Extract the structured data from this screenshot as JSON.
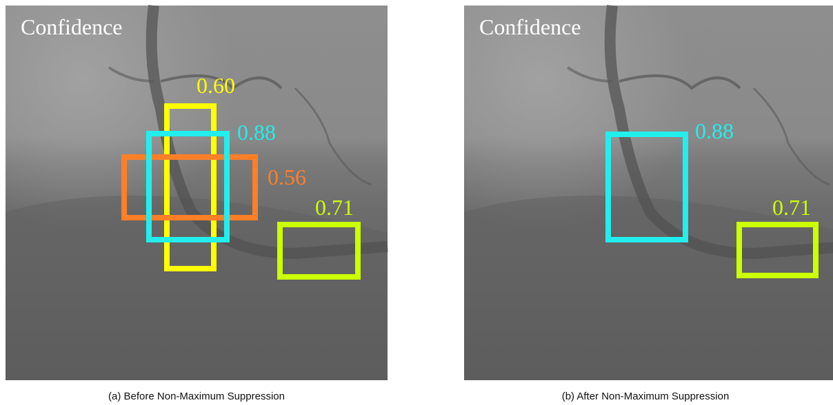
{
  "panels": [
    {
      "heading": "Confidence",
      "detections": [
        {
          "score": "0.60"
        },
        {
          "score": "0.88"
        },
        {
          "score": "0.56"
        },
        {
          "score": "0.71"
        }
      ],
      "caption": "(a)  Before Non-Maximum Suppression"
    },
    {
      "heading": "Confidence",
      "detections": [
        {
          "score": "0.88"
        },
        {
          "score": "0.71"
        }
      ],
      "caption": "(b)  After Non-Maximum Suppression"
    }
  ]
}
